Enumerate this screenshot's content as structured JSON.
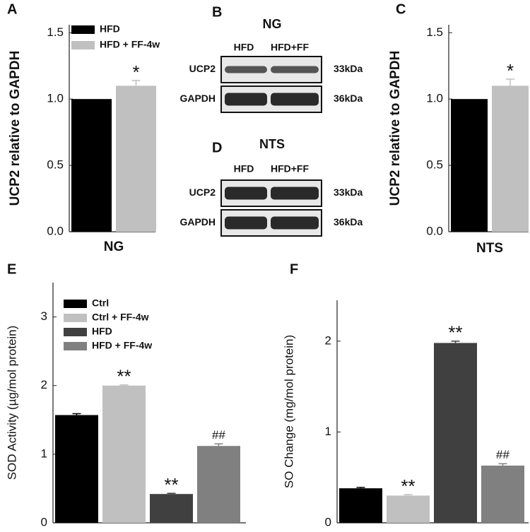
{
  "chart_data": [
    {
      "type": "bar",
      "panel": "A",
      "ylabel": "UCP2 relative to GAPDH",
      "categories": [
        "NG"
      ],
      "series": [
        {
          "name": "HFD",
          "color": "#000000",
          "values": [
            1.0
          ]
        },
        {
          "name": "HFD + FF-4w",
          "color": "#c0c0c0",
          "values": [
            1.1
          ],
          "errors": [
            0.04
          ],
          "annotations": [
            "*"
          ]
        }
      ],
      "ylim": [
        0,
        1.56
      ],
      "yticks": [
        {
          "value": 0,
          "label": "0.0"
        },
        0.5,
        {
          "value": 1,
          "label": "1.0"
        },
        1.5
      ],
      "grid": false,
      "legend": "upper left"
    },
    {
      "type": "bar",
      "panel": "C",
      "ylabel": "UCP2 relative to GAPDH",
      "categories": [
        "NTS"
      ],
      "series": [
        {
          "color": "#000000",
          "values": [
            1.0
          ]
        },
        {
          "color": "#c0c0c0",
          "values": [
            1.1
          ],
          "errors": [
            0.05
          ],
          "annotations": [
            "*"
          ]
        }
      ],
      "ylim": [
        0,
        1.56
      ],
      "yticks": [
        {
          "value": 0,
          "label": "0.0"
        },
        0.5,
        {
          "value": 1,
          "label": "1.0"
        },
        1.5
      ],
      "grid": false
    },
    {
      "type": "bar",
      "panel": "E",
      "ylabel": "SOD Activity (µg/mol protein)",
      "categories": [
        null
      ],
      "series": [
        {
          "name": "Ctrl",
          "color": "#000000",
          "values": [
            1.57
          ],
          "errors": [
            0.02
          ]
        },
        {
          "name": "Ctrl + FF-4w",
          "color": "#c0c0c0",
          "values": [
            2.0
          ],
          "errors": [
            0.01
          ],
          "annotations": [
            "**"
          ]
        },
        {
          "name": "HFD",
          "color": "#404040",
          "values": [
            0.42
          ],
          "errors": [
            0.01
          ],
          "annotations": [
            "**"
          ]
        },
        {
          "name": "HFD + FF-4w",
          "color": "#808080",
          "values": [
            1.12
          ],
          "errors": [
            0.03
          ],
          "annotations": [
            "##"
          ]
        }
      ],
      "ylim": [
        0,
        3.5
      ],
      "yticks": [
        0,
        1,
        2,
        3
      ],
      "grid": false,
      "legend": "upper left"
    },
    {
      "type": "bar",
      "panel": "F",
      "ylabel": "SO Change (mg/mol protein)",
      "categories": [
        null
      ],
      "series": [
        {
          "color": "#000000",
          "values": [
            0.38
          ],
          "errors": [
            0.01
          ]
        },
        {
          "color": "#c0c0c0",
          "values": [
            0.3
          ],
          "errors": [
            0.01
          ],
          "annotations": [
            "**"
          ]
        },
        {
          "color": "#404040",
          "values": [
            1.98
          ],
          "errors": [
            0.02
          ],
          "annotations": [
            "**"
          ]
        },
        {
          "color": "#808080",
          "values": [
            0.63
          ],
          "errors": [
            0.02
          ],
          "annotations": [
            "##"
          ]
        }
      ],
      "ylim": [
        0,
        2.45
      ],
      "yticks": [
        0,
        1,
        2
      ],
      "grid": false
    }
  ],
  "blots": [
    {
      "panel": "B",
      "title": "NG",
      "lanes": [
        "HFD",
        "HFD+FF"
      ],
      "rows": [
        {
          "name": "UCP2",
          "size": "33kDa"
        },
        {
          "name": "GAPDH",
          "size": "36kDa"
        }
      ]
    },
    {
      "panel": "D",
      "title": "NTS",
      "lanes": [
        "HFD",
        "HFD+FF"
      ],
      "rows": [
        {
          "name": "UCP2",
          "size": "33kDa"
        },
        {
          "name": "GAPDH",
          "size": "36kDa"
        }
      ]
    }
  ]
}
